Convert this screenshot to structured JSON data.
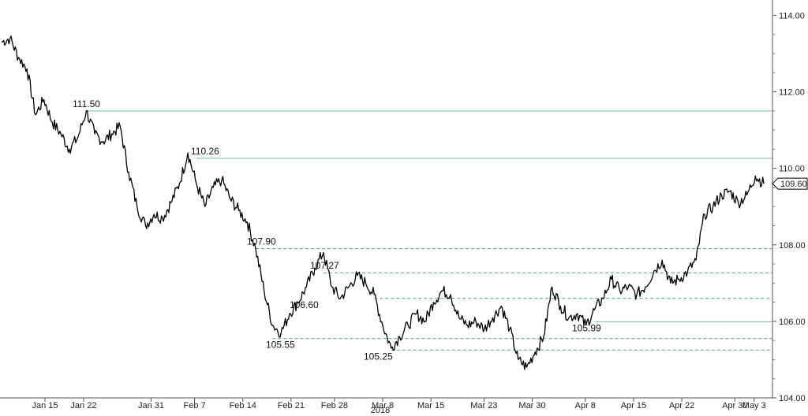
{
  "chart_data": {
    "type": "line",
    "title": "",
    "xlabel": "2018",
    "ylabel": "",
    "ylim": [
      104.0,
      114.4
    ],
    "grid": false,
    "x_tick_labels": [
      "Jan 15",
      "Jan 22",
      "Jan 31",
      "Feb 7",
      "Feb 14",
      "Feb 21",
      "Feb 28",
      "Mar 8",
      "Mar 15",
      "Mar 23",
      "Mar 30",
      "Apr 8",
      "Apr 15",
      "Apr 22",
      "Apr 30",
      "May 3"
    ],
    "y_ticks": [
      {
        "value": 104,
        "label": "104.00"
      },
      {
        "value": 106,
        "label": "106.00"
      },
      {
        "value": 108,
        "label": "108.00"
      },
      {
        "value": 110,
        "label": "110.00"
      },
      {
        "value": 112,
        "label": "112.00"
      },
      {
        "value": 114,
        "label": "114.00"
      }
    ],
    "last_value_label": "109.60",
    "last_value": 109.6,
    "levels": [
      {
        "value": 111.5,
        "label": "111.50",
        "style": "solid",
        "color": "#6fbf99"
      },
      {
        "value": 110.26,
        "label": "110.26",
        "style": "solid",
        "color": "#6fbf99"
      },
      {
        "value": 107.9,
        "label": "107.90",
        "style": "dashed",
        "color": "#4f9f85"
      },
      {
        "value": 107.27,
        "label": "107.27",
        "style": "dashed",
        "color": "#4f9f85"
      },
      {
        "value": 106.6,
        "label": "106.60",
        "style": "dashed",
        "color": "#4f9f85"
      },
      {
        "value": 105.99,
        "label": "105.99",
        "style": "solid",
        "color": "#6fbf99"
      },
      {
        "value": 105.55,
        "label": "105.55",
        "style": "dashed",
        "color": "#4f9f85"
      },
      {
        "value": 105.25,
        "label": "105.25",
        "style": "dashed",
        "color": "#4f9f85"
      }
    ],
    "series": [
      {
        "color": "#000000",
        "points": [
          [
            0,
            113.3
          ],
          [
            1,
            113.4
          ],
          [
            2,
            112.9
          ],
          [
            3,
            112.6
          ],
          [
            4,
            111.4
          ],
          [
            5,
            111.8
          ],
          [
            6,
            111.2
          ],
          [
            7,
            110.9
          ],
          [
            8,
            110.5
          ],
          [
            9,
            110.8
          ],
          [
            10,
            111.5
          ],
          [
            11,
            110.9
          ],
          [
            12,
            110.7
          ],
          [
            13,
            110.9
          ],
          [
            14,
            111.1
          ],
          [
            15,
            109.9
          ],
          [
            16,
            109.0
          ],
          [
            17,
            108.5
          ],
          [
            18,
            108.8
          ],
          [
            19,
            108.7
          ],
          [
            20,
            109.1
          ],
          [
            21,
            109.6
          ],
          [
            22,
            110.4
          ],
          [
            23,
            109.6
          ],
          [
            24,
            109.0
          ],
          [
            25,
            109.5
          ],
          [
            26,
            109.7
          ],
          [
            27,
            109.2
          ],
          [
            28,
            108.9
          ],
          [
            29,
            108.6
          ],
          [
            30,
            107.9
          ],
          [
            31,
            106.8
          ],
          [
            32,
            105.9
          ],
          [
            33,
            105.7
          ],
          [
            34,
            106.2
          ],
          [
            35,
            106.5
          ],
          [
            36,
            106.9
          ],
          [
            37,
            107.4
          ],
          [
            38,
            107.8
          ],
          [
            39,
            106.9
          ],
          [
            40,
            106.6
          ],
          [
            41,
            106.9
          ],
          [
            42,
            107.2
          ],
          [
            43,
            107.0
          ],
          [
            44,
            106.7
          ],
          [
            45,
            105.9
          ],
          [
            46,
            105.3
          ],
          [
            47,
            105.6
          ],
          [
            48,
            105.9
          ],
          [
            49,
            106.2
          ],
          [
            50,
            106.0
          ],
          [
            51,
            106.5
          ],
          [
            52,
            106.8
          ],
          [
            53,
            106.7
          ],
          [
            54,
            106.1
          ],
          [
            55,
            105.9
          ],
          [
            56,
            106.0
          ],
          [
            57,
            105.8
          ],
          [
            58,
            106.1
          ],
          [
            59,
            106.4
          ],
          [
            60,
            105.8
          ],
          [
            61,
            105.0
          ],
          [
            62,
            104.8
          ],
          [
            63,
            105.2
          ],
          [
            64,
            105.6
          ],
          [
            65,
            106.9
          ],
          [
            66,
            106.4
          ],
          [
            67,
            106.1
          ],
          [
            68,
            106.2
          ],
          [
            69,
            105.9
          ],
          [
            70,
            106.3
          ],
          [
            71,
            106.6
          ],
          [
            72,
            107.1
          ],
          [
            73,
            106.8
          ],
          [
            74,
            106.9
          ],
          [
            75,
            106.7
          ],
          [
            76,
            106.9
          ],
          [
            77,
            107.3
          ],
          [
            78,
            107.6
          ],
          [
            79,
            107.0
          ],
          [
            80,
            107.1
          ],
          [
            81,
            107.3
          ],
          [
            82,
            107.6
          ],
          [
            83,
            108.8
          ],
          [
            84,
            109.0
          ],
          [
            85,
            109.3
          ],
          [
            86,
            109.4
          ],
          [
            87,
            109.1
          ],
          [
            88,
            109.3
          ],
          [
            89,
            109.8
          ],
          [
            90,
            109.6
          ]
        ]
      }
    ]
  }
}
